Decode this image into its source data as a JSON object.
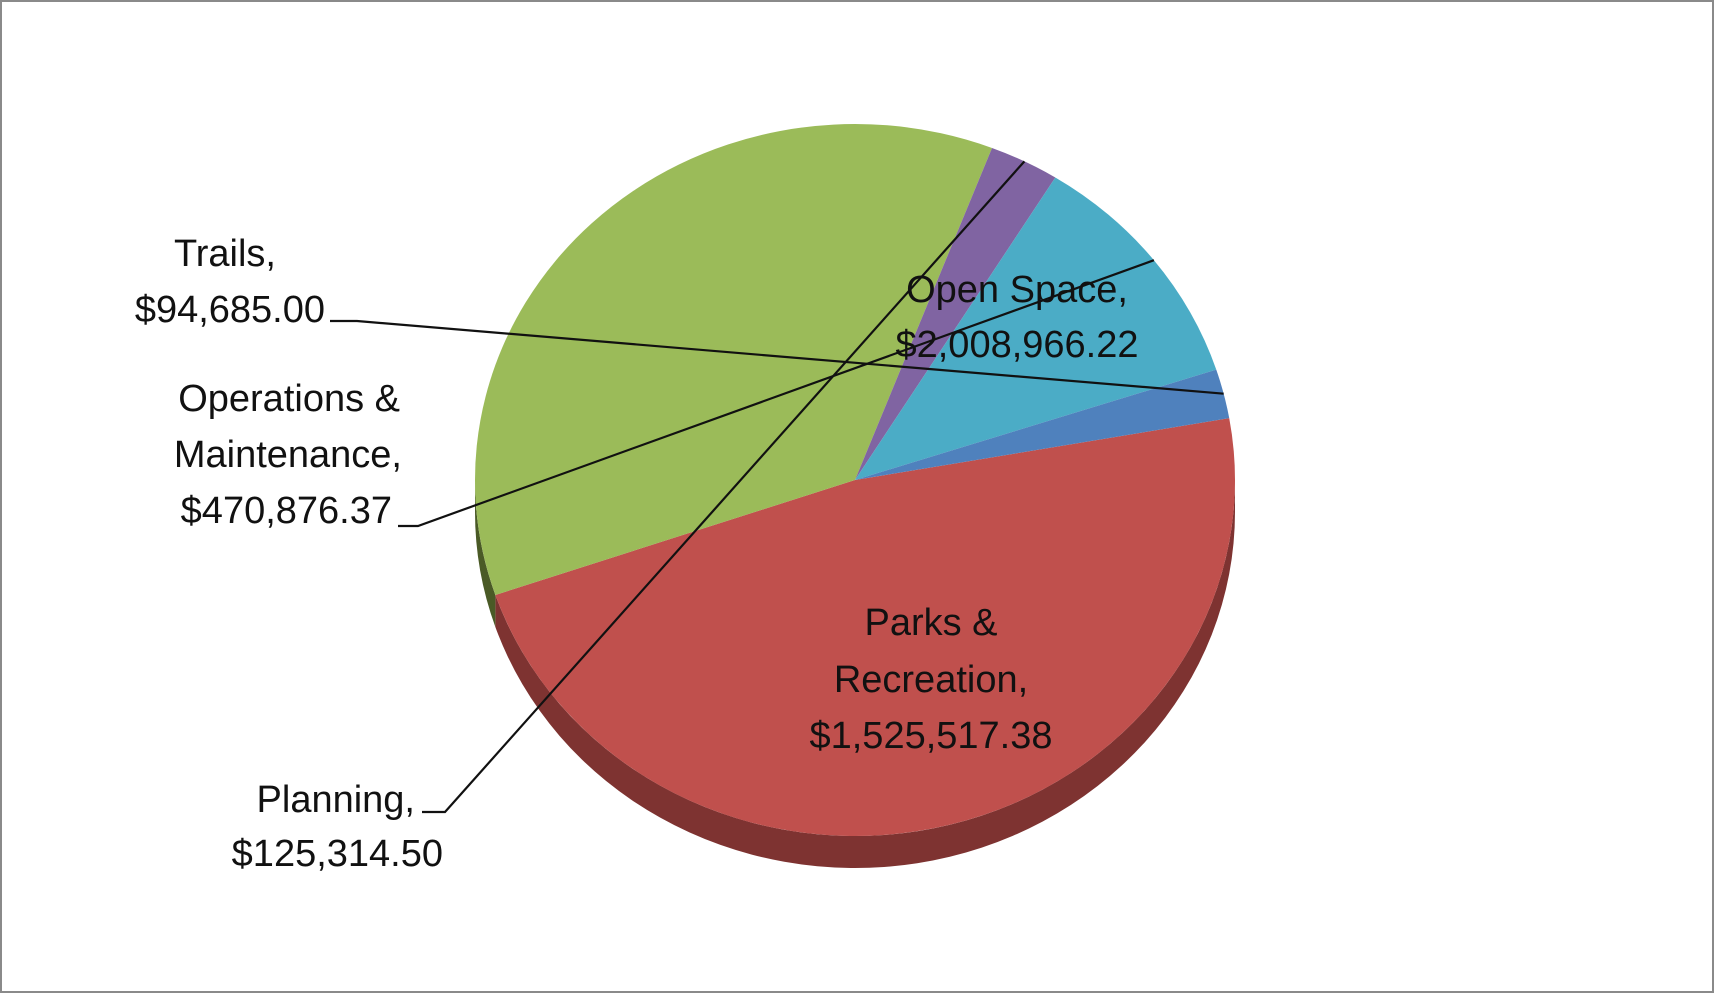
{
  "chart_data": {
    "type": "pie",
    "title": "",
    "slices": [
      {
        "name": "Open Space",
        "value": 2008966.22,
        "label_name": "Open Space,",
        "label_value": "$2,008,966.22",
        "color": "#C0504D",
        "side_color": "#7e3331"
      },
      {
        "name": "Parks & Recreation",
        "value": 1525517.38,
        "label_name_line1": "Parks &",
        "label_name_line2": "Recreation,",
        "label_value": "$1,525,517.38",
        "color": "#9BBB59",
        "side_color": "#4a5a26"
      },
      {
        "name": "Planning",
        "value": 125314.5,
        "label_name": "Planning,",
        "label_value": "$125,314.50",
        "color": "#8064A2",
        "side_color": "#4b3a62"
      },
      {
        "name": "Operations & Maintenance",
        "value": 470876.37,
        "label_name_line1": "Operations &",
        "label_name_line2": "Maintenance,",
        "label_value": "$470,876.37",
        "color": "#4BACC6",
        "side_color": "#2d7488"
      },
      {
        "name": "Trails",
        "value": 94685.0,
        "label_name": "Trails,",
        "label_value": "$94,685.00",
        "color": "#4F81BD",
        "side_color": "#2e507a"
      }
    ],
    "legend": "none",
    "style": "3d-pie"
  }
}
